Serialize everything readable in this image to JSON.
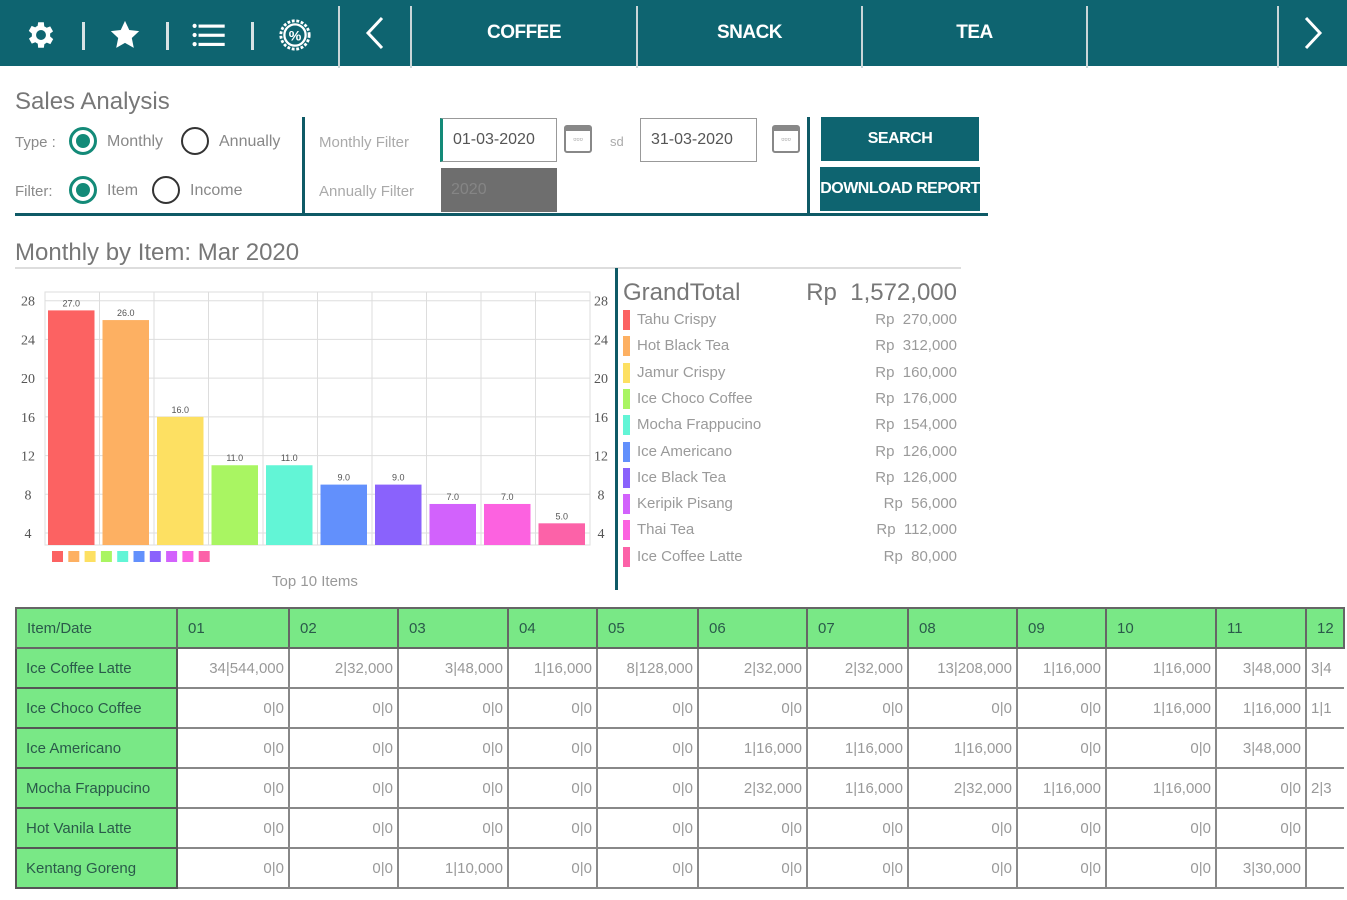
{
  "topbar": {
    "icons": [
      "gear-icon",
      "star-icon",
      "list-icon",
      "discount-icon"
    ],
    "tabs": [
      {
        "label": "COFFEE"
      },
      {
        "label": "SNACK"
      },
      {
        "label": "TEA"
      },
      {
        "label": ""
      }
    ]
  },
  "filters": {
    "title": "Sales Analysis",
    "type_label": "Type :",
    "type_options": [
      "Monthly",
      "Annually"
    ],
    "type_selected": "Monthly",
    "filter_label": "Filter:",
    "filter_options": [
      "Item",
      "Income"
    ],
    "filter_selected": "Item",
    "monthly_filter_label": "Monthly Filter",
    "date_from": "01-03-2020",
    "sd_label": "sd",
    "date_to": "31-03-2020",
    "annually_filter_label": "Annually Filter",
    "year": "2020",
    "search_label": "SEARCH",
    "download_label": "DOWNLOAD REPORT"
  },
  "section_title": "Monthly by Item: Mar 2020",
  "chart_data": {
    "type": "bar",
    "title": "Monthly by Item: Mar 2020",
    "xlabel": "Top 10 Items",
    "ylabel": "",
    "categories": [
      "Tahu Crispy",
      "Hot Black Tea",
      "Jamur Crispy",
      "Ice Choco Coffee",
      "Mocha Frappucino",
      "Ice Americano",
      "Ice Black Tea",
      "Keripik Pisang",
      "Thai Tea",
      "Ice Coffee Latte"
    ],
    "values": [
      27.0,
      26.0,
      16.0,
      11.0,
      11.0,
      9.0,
      9.0,
      7.0,
      7.0,
      5.0
    ],
    "value_labels": [
      "27.0",
      "26.0",
      "16.0",
      "11.0",
      "11.0",
      "9.0",
      "9.0",
      "7.0",
      "7.0",
      "5.0"
    ],
    "colors": [
      "#fc6262",
      "#fdb062",
      "#fde062",
      "#a9f562",
      "#62f5d6",
      "#6290fc",
      "#8a62fc",
      "#d262fc",
      "#fc62e0",
      "#fc62a8"
    ],
    "ylim": [
      2.76,
      28.9
    ],
    "yticks": [
      4,
      8,
      12,
      16,
      20,
      24,
      28
    ],
    "grid": true,
    "legend": "bottom-left"
  },
  "grand_total": {
    "label": "GrandTotal",
    "value": "Rp  1,572,000",
    "items": [
      {
        "name": "Tahu Crispy",
        "value": "Rp  270,000"
      },
      {
        "name": "Hot Black Tea",
        "value": "Rp  312,000"
      },
      {
        "name": "Jamur Crispy",
        "value": "Rp  160,000"
      },
      {
        "name": "Ice Choco Coffee",
        "value": "Rp  176,000"
      },
      {
        "name": "Mocha Frappucino",
        "value": "Rp  154,000"
      },
      {
        "name": "Ice Americano",
        "value": "Rp  126,000"
      },
      {
        "name": "Ice Black Tea",
        "value": "Rp  126,000"
      },
      {
        "name": "Keripik Pisang",
        "value": "Rp  56,000"
      },
      {
        "name": "Thai Tea",
        "value": "Rp  112,000"
      },
      {
        "name": "Ice Coffee Latte",
        "value": "Rp  80,000"
      }
    ]
  },
  "table": {
    "headers": [
      "Item/Date",
      "01",
      "02",
      "03",
      "04",
      "05",
      "06",
      "07",
      "08",
      "09",
      "10",
      "11",
      "12"
    ],
    "rows": [
      [
        "Ice Coffee Latte",
        "34|544,000",
        "2|32,000",
        "3|48,000",
        "1|16,000",
        "8|128,000",
        "2|32,000",
        "2|32,000",
        "13|208,000",
        "1|16,000",
        "1|16,000",
        "3|48,000",
        "3|4"
      ],
      [
        "Ice Choco Coffee",
        "0|0",
        "0|0",
        "0|0",
        "0|0",
        "0|0",
        "0|0",
        "0|0",
        "0|0",
        "0|0",
        "1|16,000",
        "1|16,000",
        "1|1"
      ],
      [
        "Ice Americano",
        "0|0",
        "0|0",
        "0|0",
        "0|0",
        "0|0",
        "1|16,000",
        "1|16,000",
        "1|16,000",
        "0|0",
        "0|0",
        "3|48,000",
        ""
      ],
      [
        "Mocha Frappucino",
        "0|0",
        "0|0",
        "0|0",
        "0|0",
        "0|0",
        "2|32,000",
        "1|16,000",
        "2|32,000",
        "1|16,000",
        "1|16,000",
        "0|0",
        "2|3"
      ],
      [
        "Hot Vanila Latte",
        "0|0",
        "0|0",
        "0|0",
        "0|0",
        "0|0",
        "0|0",
        "0|0",
        "0|0",
        "0|0",
        "0|0",
        "0|0",
        ""
      ],
      [
        "Kentang Goreng",
        "0|0",
        "0|0",
        "1|10,000",
        "0|0",
        "0|0",
        "0|0",
        "0|0",
        "0|0",
        "0|0",
        "0|0",
        "3|30,000",
        ""
      ]
    ]
  }
}
